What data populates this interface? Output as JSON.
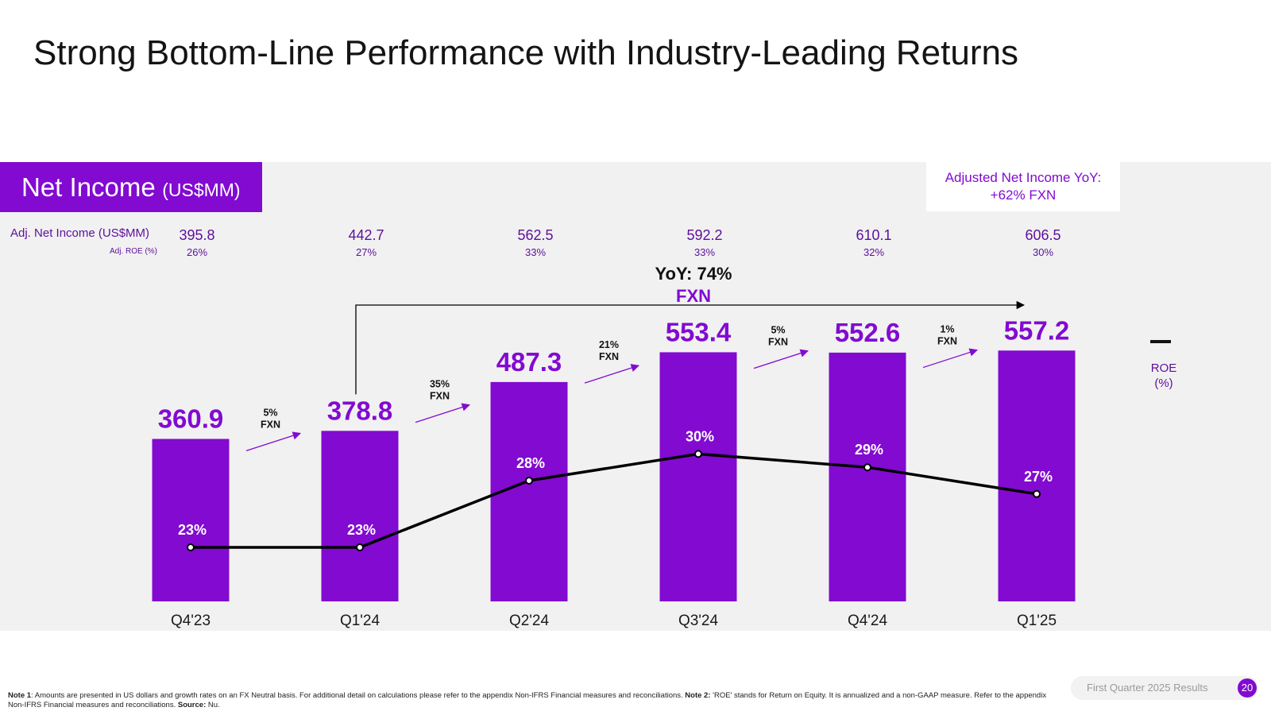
{
  "page": {
    "title": "Strong Bottom-Line Performance with Industry-Leading Returns",
    "section_label": "Net Income",
    "section_unit": "(US$MM)",
    "callout_line1": "Adjusted Net Income YoY:",
    "callout_line2": "+62% FXN",
    "adj_net_income_label": "Adj. Net Income (US$MM)",
    "adj_roe_label": "Adj. ROE (%)",
    "roe_legend_line1": "ROE",
    "roe_legend_line2": "(%)",
    "footnote_note1_label": "Note 1",
    "footnote_note1_text": ": Amounts are presented in US dollars and growth rates on an FX Neutral basis. For additional detail on calculations please refer to the appendix Non-IFRS Financial measures and reconciliations.",
    "footnote_note2_label": "Note 2:",
    "footnote_note2_text": " 'ROE' stands for Return on Equity. It is annualized and a non-GAAP measure. Refer to the appendix Non-IFRS Financial measures and reconciliations.",
    "footnote_source_label": "Source:",
    "footnote_source_text": " Nu.",
    "footer_text": "First Quarter 2025 Results",
    "page_number": "20"
  },
  "colors": {
    "bar": "#820ad1",
    "label_purple": "#820ad1",
    "muted_purple": "#5d0f9c",
    "line": "#000000",
    "panel": "#f1f1f1"
  },
  "chart_data": {
    "type": "bar",
    "categories": [
      "Q4'23",
      "Q1'24",
      "Q2'24",
      "Q3'24",
      "Q4'24",
      "Q1'25"
    ],
    "series": [
      {
        "values": [
          360.9,
          378.8,
          487.3,
          553.4,
          552.6,
          557.2
        ]
      },
      {
        "name": "ROE (%)",
        "type": "line",
        "values": [
          23,
          23,
          28,
          30,
          29,
          27
        ]
      }
    ],
    "bar_labels": [
      "360.9",
      "378.8",
      "487.3",
      "553.4",
      "552.6",
      "557.2"
    ],
    "roe_labels": [
      "23%",
      "23%",
      "28%",
      "30%",
      "29%",
      "27%"
    ],
    "adj_net_income": [
      "395.8",
      "442.7",
      "562.5",
      "592.2",
      "610.1",
      "606.5"
    ],
    "adj_roe": [
      "26%",
      "27%",
      "33%",
      "33%",
      "32%",
      "30%"
    ],
    "growth_annotations": [
      {
        "pct": "5%",
        "unit": "FXN"
      },
      {
        "pct": "35%",
        "unit": "FXN"
      },
      {
        "pct": "21%",
        "unit": "FXN"
      },
      {
        "pct": "5%",
        "unit": "FXN"
      },
      {
        "pct": "1%",
        "unit": "FXN"
      }
    ],
    "yoy_annotation": {
      "line1": "YoY: 74%",
      "line2": "FXN"
    },
    "ylim": [
      0,
      600
    ],
    "grid": false,
    "legend": "right"
  }
}
